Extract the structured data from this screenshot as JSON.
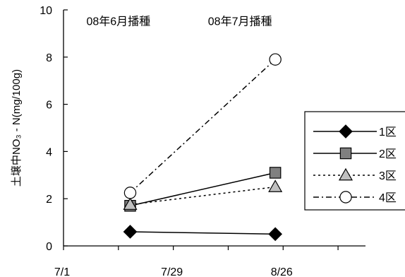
{
  "chart_data": {
    "type": "line",
    "ylabel": "土壌中NO₃ - N(mg/100g)",
    "ylim": [
      0,
      10
    ],
    "yticks": [
      0,
      2,
      4,
      6,
      8,
      10
    ],
    "xlim": [
      "7/1",
      "9/16"
    ],
    "x_tick_positions": [
      "7/1",
      "7/15",
      "7/29",
      "8/12",
      "8/26",
      "9/9"
    ],
    "x_tick_labels": [
      {
        "date": "7/1",
        "label": "7/1"
      },
      {
        "date": "7/29",
        "label": "7/29"
      },
      {
        "date": "8/26",
        "label": "8/26"
      }
    ],
    "annotations": [
      {
        "text": "08年6月播種",
        "x": "7/15",
        "y": 9.5
      },
      {
        "text": "08年7月播種",
        "x": "8/15",
        "y": 9.5
      }
    ],
    "legend_position": "right",
    "series": [
      {
        "name": "1区",
        "marker": "diamond",
        "fill": "#000000",
        "line": "solid",
        "x": [
          "7/18",
          "8/24"
        ],
        "y": [
          0.6,
          0.5
        ]
      },
      {
        "name": "2区",
        "marker": "square",
        "fill": "#808080",
        "line": "solid",
        "x": [
          "7/18",
          "8/24"
        ],
        "y": [
          1.7,
          3.1
        ]
      },
      {
        "name": "3区",
        "marker": "triangle",
        "fill": "#c0c0c0",
        "line": "dotted",
        "x": [
          "7/18",
          "8/24"
        ],
        "y": [
          1.75,
          2.5
        ]
      },
      {
        "name": "4区",
        "marker": "circle",
        "fill": "#ffffff",
        "line": "dashdot",
        "x": [
          "7/18",
          "8/24"
        ],
        "y": [
          2.25,
          7.9
        ]
      }
    ]
  }
}
